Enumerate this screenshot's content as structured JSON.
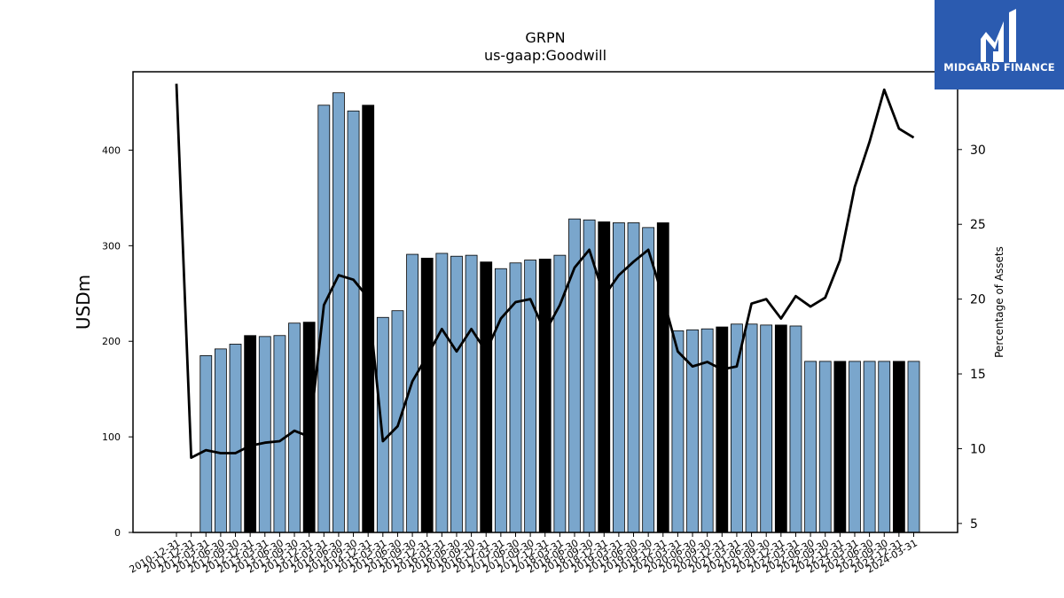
{
  "brand": {
    "name": "MIDGARD FINANCE",
    "bg_color": "#2b5bb0"
  },
  "colors": {
    "bar_regular": "#7aa6cc",
    "bar_year_end": "#000000",
    "line": "#000000"
  },
  "chart_data": {
    "type": "bar",
    "title": "GRPN",
    "subtitle": "us-gaap:Goodwill",
    "ylabel": "USDm",
    "y2label": "Percentage of Assets",
    "ylim": [
      0,
      482
    ],
    "y2lim": [
      4.4,
      35.2
    ],
    "yticks": [
      0,
      100,
      200,
      300,
      400
    ],
    "y2ticks": [
      5,
      10,
      15,
      20,
      25,
      30
    ],
    "grid": false,
    "categories": [
      "2010-12-31",
      "2011-12-31",
      "2012-03-31",
      "2012-06-30",
      "2012-09-30",
      "2012-12-31",
      "2013-03-31",
      "2013-06-30",
      "2013-09-30",
      "2013-12-31",
      "2014-03-31",
      "2014-06-30",
      "2014-09-30",
      "2014-12-31",
      "2015-03-31",
      "2015-06-30",
      "2015-09-30",
      "2015-12-31",
      "2016-03-31",
      "2016-06-30",
      "2016-09-30",
      "2016-12-31",
      "2017-03-31",
      "2017-06-30",
      "2017-09-30",
      "2017-12-31",
      "2018-03-31",
      "2018-06-30",
      "2018-09-30",
      "2018-12-31",
      "2019-03-31",
      "2019-06-30",
      "2019-09-30",
      "2019-12-31",
      "2020-03-31",
      "2020-06-30",
      "2020-09-30",
      "2020-12-31",
      "2021-03-31",
      "2021-06-30",
      "2021-09-30",
      "2021-12-31",
      "2022-03-31",
      "2022-06-30",
      "2022-09-30",
      "2022-12-31",
      "2023-03-31",
      "2023-06-30",
      "2023-09-30",
      "2023-12-31",
      "2024-03-31"
    ],
    "series": [
      {
        "kind": "bar",
        "values": [
          null,
          null,
          185,
          192,
          197,
          206,
          205,
          206,
          219,
          220,
          447,
          460,
          441,
          447,
          225,
          232,
          291,
          287,
          292,
          289,
          290,
          283,
          276,
          282,
          285,
          286,
          290,
          328,
          327,
          325,
          324,
          324,
          319,
          324,
          211,
          212,
          213,
          215,
          218,
          218,
          217,
          217,
          216,
          179,
          179,
          179,
          179,
          179,
          179,
          179,
          179
        ],
        "year_end": [
          true,
          true,
          false,
          false,
          false,
          true,
          false,
          false,
          false,
          true,
          false,
          false,
          false,
          true,
          false,
          false,
          false,
          true,
          false,
          false,
          false,
          true,
          false,
          false,
          false,
          true,
          false,
          false,
          false,
          true,
          false,
          false,
          false,
          true,
          false,
          false,
          false,
          true,
          false,
          false,
          false,
          true,
          false,
          false,
          false,
          true,
          false,
          false,
          false,
          true,
          false
        ]
      },
      {
        "kind": "line",
        "axis": "right",
        "values": [
          34.4,
          9.4,
          9.9,
          9.7,
          9.7,
          10.2,
          10.4,
          10.5,
          11.2,
          10.8,
          19.6,
          21.6,
          21.3,
          20.1,
          10.5,
          11.5,
          14.5,
          16.2,
          18.0,
          16.5,
          18.0,
          16.5,
          18.7,
          19.8,
          20.0,
          17.8,
          19.6,
          22.1,
          23.3,
          20.2,
          21.6,
          22.5,
          23.3,
          20.1,
          16.5,
          15.5,
          15.8,
          15.3,
          15.5,
          19.7,
          20.0,
          18.7,
          20.2,
          19.5,
          20.1,
          22.6,
          27.5,
          30.5,
          34.0,
          31.4,
          30.8
        ]
      }
    ]
  }
}
